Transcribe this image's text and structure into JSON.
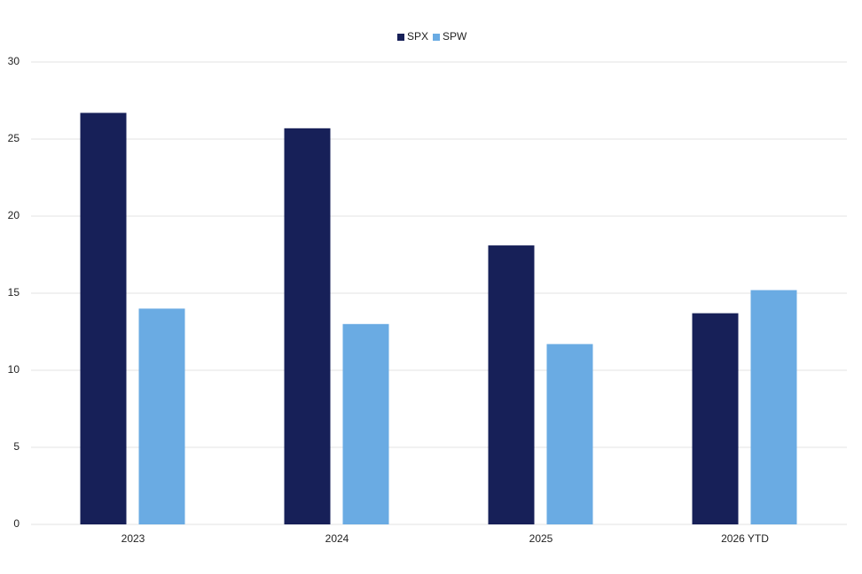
{
  "chart_data": {
    "type": "bar",
    "categories": [
      "2023",
      "2024",
      "2025",
      "2026 YTD"
    ],
    "series": [
      {
        "name": "SPX",
        "color": "#172058",
        "values": [
          26.7,
          25.7,
          18.1,
          13.7
        ]
      },
      {
        "name": "SPW",
        "color": "#6aabe3",
        "values": [
          14.0,
          13.0,
          11.7,
          15.2
        ]
      }
    ],
    "ylim": [
      0,
      30
    ],
    "yticks": [
      0,
      5,
      10,
      15,
      20,
      25,
      30
    ],
    "grid": true,
    "legend": "top"
  }
}
